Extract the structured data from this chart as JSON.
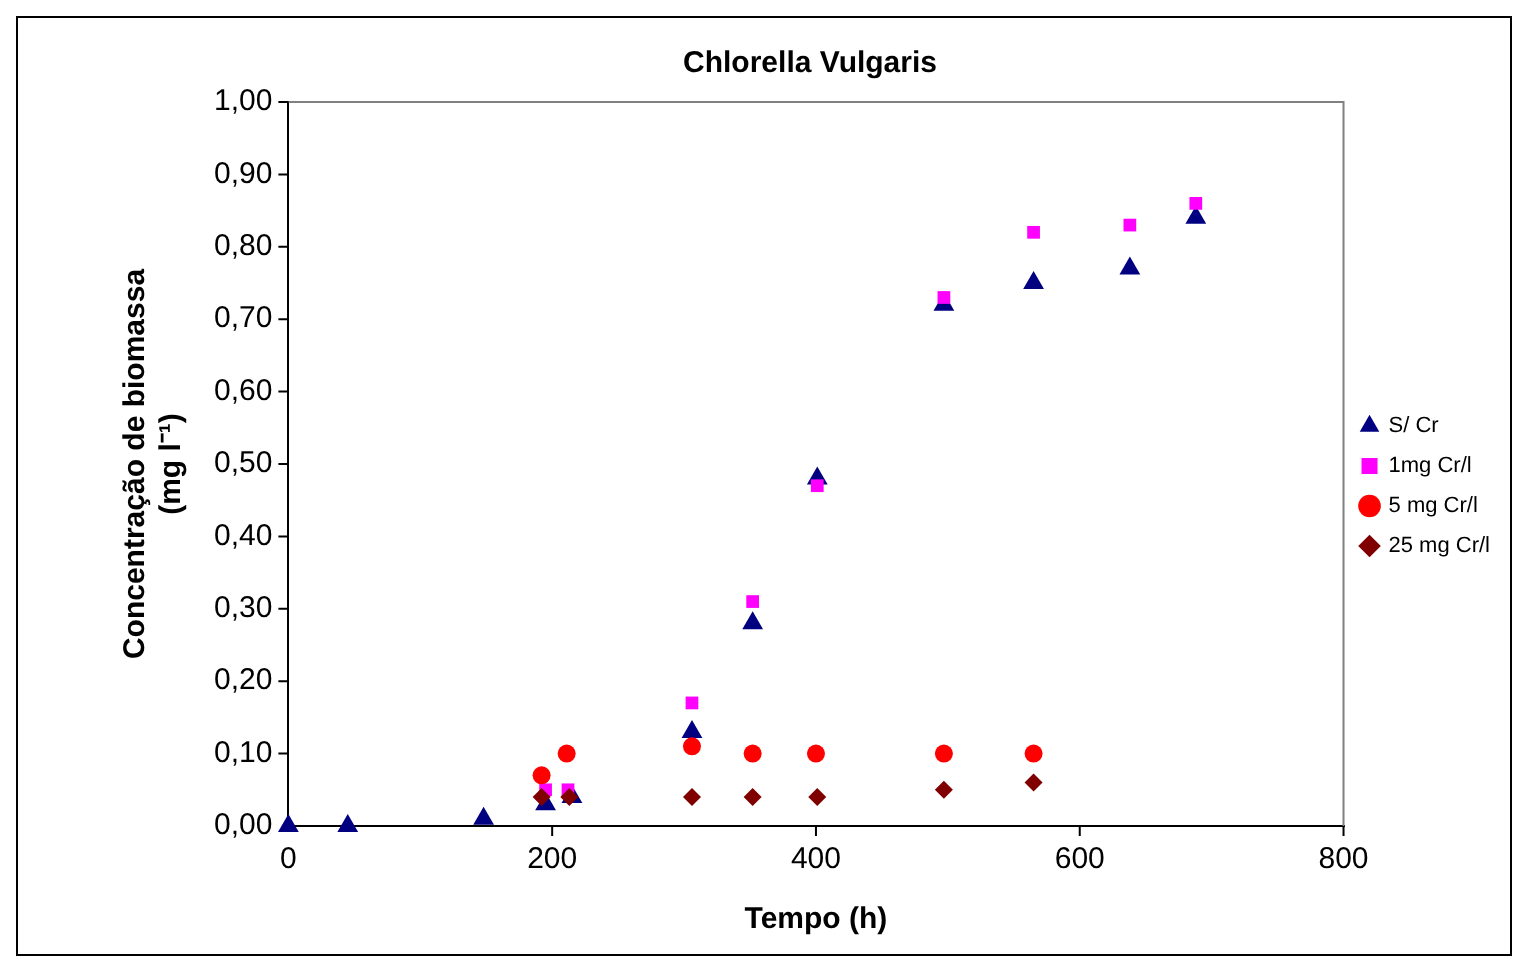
{
  "chart_data": {
    "type": "scatter",
    "title": "Chlorella Vulgaris",
    "xlabel": "Tempo (h)",
    "ylabel": "Concentração de biomassa (mg l⁻¹)",
    "xlim": [
      0,
      800
    ],
    "xticks": [
      0,
      200,
      400,
      600,
      800
    ],
    "ylim": [
      0,
      1
    ],
    "yticks": [
      {
        "value": 0,
        "label": "0,00"
      },
      {
        "value": 0.1,
        "label": "0,10"
      },
      {
        "value": 0.2,
        "label": "0,20"
      },
      {
        "value": 0.3,
        "label": "0,30"
      },
      {
        "value": 0.4,
        "label": "0,40"
      },
      {
        "value": 0.5,
        "label": "0,50"
      },
      {
        "value": 0.6,
        "label": "0,60"
      },
      {
        "value": 0.7,
        "label": "0,70"
      },
      {
        "value": 0.8,
        "label": "0,80"
      },
      {
        "value": 0.9,
        "label": "0,90"
      },
      {
        "value": 1,
        "label": "1,00"
      }
    ],
    "grid": false,
    "legend": "right",
    "series": [
      {
        "name": "S/ Cr",
        "color": "#000080",
        "marker": "triangle",
        "x": [
          0,
          45,
          148,
          195,
          215,
          306,
          352,
          401,
          497,
          565,
          638,
          688
        ],
        "values": [
          0,
          0,
          0.01,
          0.03,
          0.04,
          0.13,
          0.28,
          0.48,
          0.72,
          0.75,
          0.77,
          0.84
        ]
      },
      {
        "name": "1mg Cr/l",
        "color": "#ff00ff",
        "marker": "square",
        "x": [
          195,
          212,
          306,
          352,
          401,
          497,
          565,
          638,
          688
        ],
        "values": [
          0.05,
          0.05,
          0.17,
          0.31,
          0.47,
          0.73,
          0.82,
          0.83,
          0.86
        ]
      },
      {
        "name": "5 mg Cr/l",
        "color": "#ff0000",
        "marker": "circle",
        "x": [
          192,
          211,
          306,
          352,
          400,
          497,
          565
        ],
        "values": [
          0.07,
          0.1,
          0.11,
          0.1,
          0.1,
          0.1,
          0.1
        ]
      },
      {
        "name": "25 mg Cr/l",
        "color": "#800000",
        "marker": "diamond",
        "x": [
          192,
          213,
          306,
          352,
          401,
          497,
          565
        ],
        "values": [
          0.04,
          0.04,
          0.04,
          0.04,
          0.04,
          0.05,
          0.06
        ]
      }
    ]
  }
}
